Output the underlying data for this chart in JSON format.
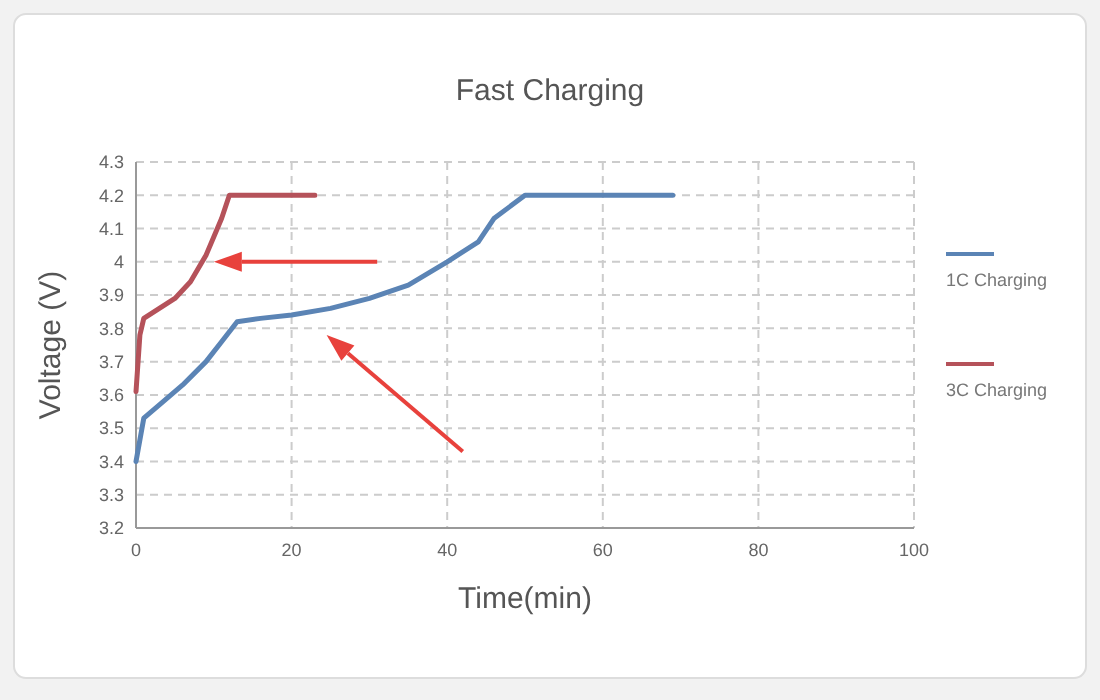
{
  "chart_data": {
    "type": "line",
    "title": "Fast Charging",
    "xlabel": "Time(min)",
    "ylabel": "Voltage  (V)",
    "xlim": [
      0,
      100
    ],
    "xticks": [
      0,
      20,
      40,
      60,
      80,
      100
    ],
    "ylim": [
      3.2,
      4.3
    ],
    "yticks": [
      3.2,
      3.3,
      3.4,
      3.5,
      3.6,
      3.7,
      3.8,
      3.9,
      4,
      4.1,
      4.2,
      4.3
    ],
    "grid": true,
    "legend": "right",
    "marker": "none",
    "line_style": "solid",
    "series": [
      {
        "name": "1C Charging",
        "color": "#5b84b5",
        "x": [
          0,
          1,
          3,
          6,
          9,
          11,
          13,
          16,
          20,
          25,
          30,
          35,
          40,
          44,
          46,
          50,
          69
        ],
        "values": [
          3.4,
          3.53,
          3.57,
          3.63,
          3.7,
          3.76,
          3.82,
          3.83,
          3.84,
          3.86,
          3.89,
          3.93,
          4.0,
          4.06,
          4.13,
          4.2,
          4.2
        ]
      },
      {
        "name": "3C Charging",
        "color": "#b5525a",
        "x": [
          0,
          0.5,
          1,
          3,
          5,
          7,
          9,
          11,
          12,
          23
        ],
        "values": [
          3.61,
          3.78,
          3.83,
          3.86,
          3.89,
          3.94,
          4.02,
          4.13,
          4.2,
          4.2
        ]
      }
    ]
  }
}
